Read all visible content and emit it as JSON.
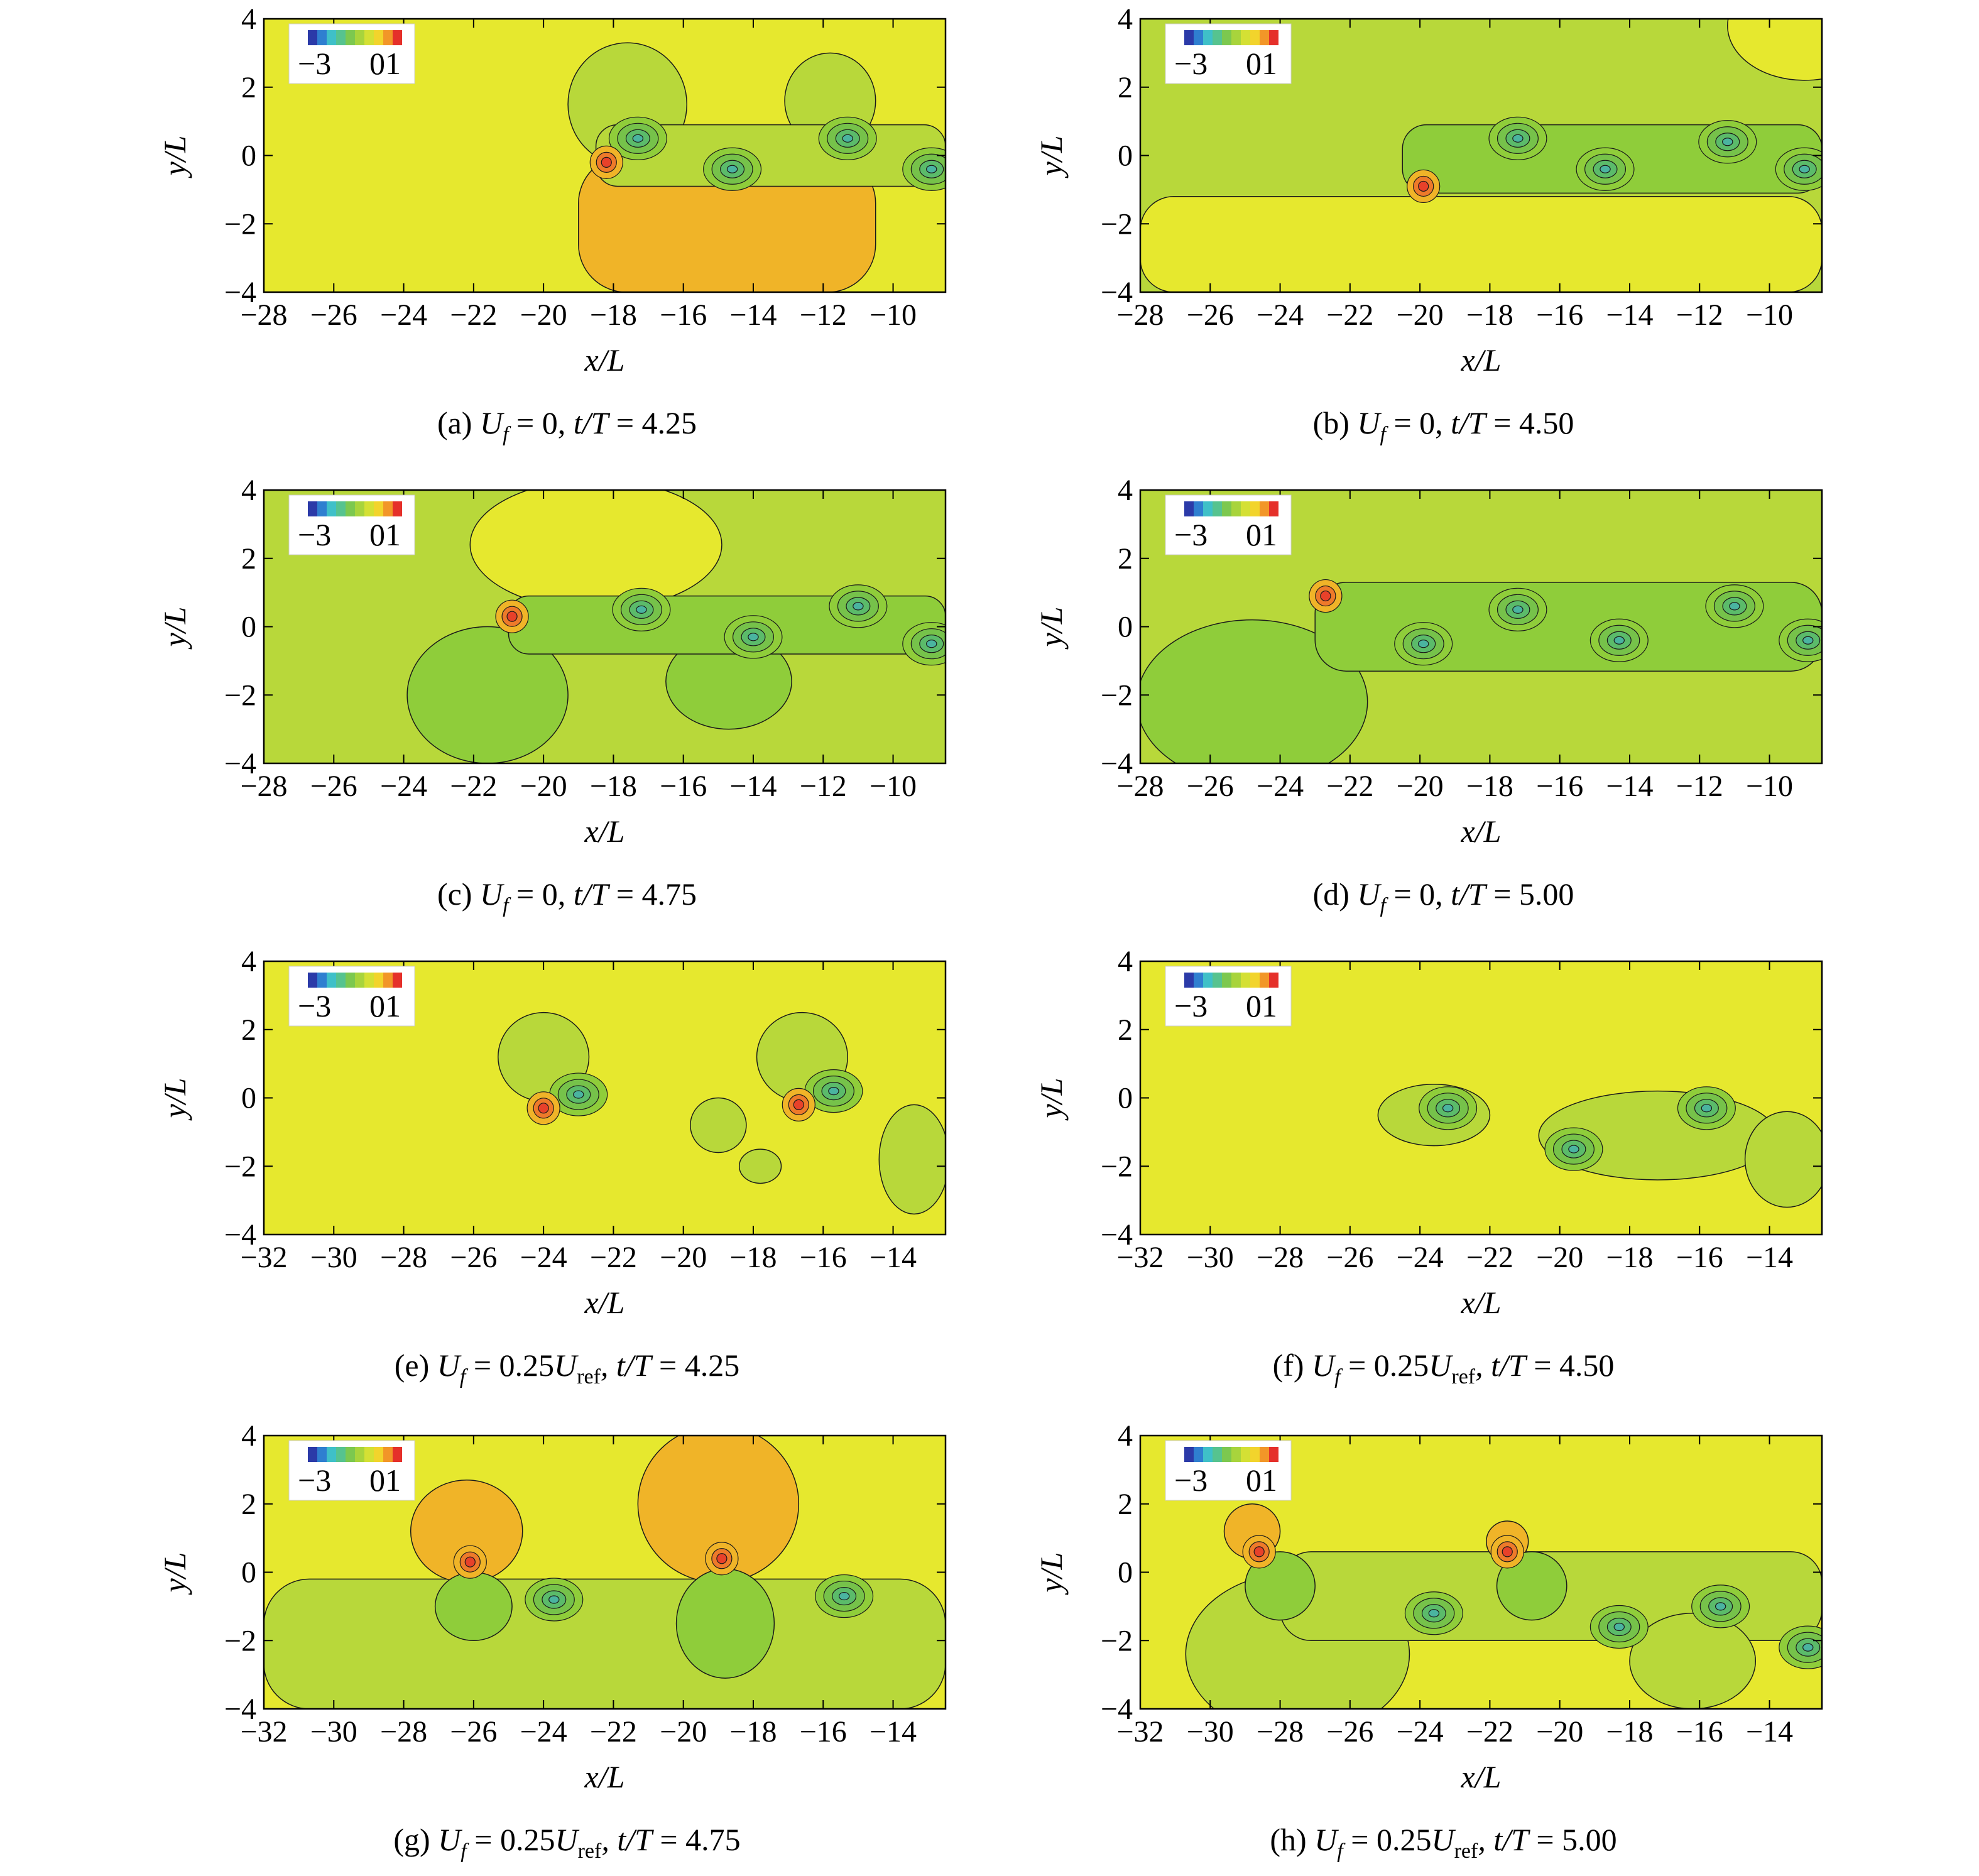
{
  "colors": {
    "field_yellow": "#e6e82e",
    "field_light_green": "#b8d83a",
    "field_green": "#8fcd3a",
    "field_mid_green": "#76c24a",
    "field_orange": "#f0b428",
    "field_red": "#e8412a",
    "contour_line": "#1a1a1a",
    "colorbar": [
      "#2b3aa8",
      "#2f7fd0",
      "#3fc0c8",
      "#56c38f",
      "#7cc84f",
      "#a8d43c",
      "#d4e034",
      "#f2d42c",
      "#f29628",
      "#e5302a"
    ]
  },
  "chart_data": [
    {
      "id": "a",
      "type": "heatmap",
      "xlabel": "x/L",
      "ylabel": "y/L",
      "xlim": [
        -28,
        -8.5
      ],
      "ylim": [
        -4,
        4
      ],
      "xticks": [
        -28,
        -26,
        -24,
        -22,
        -20,
        -18,
        -16,
        -14,
        -12,
        -10
      ],
      "yticks": [
        -4,
        -2,
        0,
        2,
        4
      ],
      "colorbar_labels": [
        "−3",
        "01"
      ],
      "caption": {
        "label": "(a) ",
        "var": "U",
        "sub": "f",
        "mid": " = 0, ",
        "time": "t/T",
        "value": " = 4.25"
      },
      "background": "field_yellow",
      "regions": [
        {
          "color": "field_orange",
          "x0": -19,
          "x1": -10.5,
          "y0": -4,
          "y1": 0
        },
        {
          "color": "field_light_green",
          "cx": -17.6,
          "cy": 1.5,
          "rx": 1.7,
          "ry": 1.8
        },
        {
          "color": "field_light_green",
          "cx": -11.8,
          "cy": 1.6,
          "rx": 1.3,
          "ry": 1.4
        },
        {
          "color": "field_light_green",
          "x0": -18.5,
          "x1": -8.5,
          "y0": -0.9,
          "y1": 0.9
        }
      ],
      "vortices": [
        [
          -17.3,
          0.5
        ],
        [
          -14.6,
          -0.4
        ],
        [
          -11.3,
          0.5
        ],
        [
          -8.9,
          -0.4
        ]
      ],
      "hotspots": [
        [
          -18.2,
          -0.2
        ]
      ]
    },
    {
      "id": "b",
      "type": "heatmap",
      "xlabel": "x/L",
      "ylabel": "y/L",
      "xlim": [
        -28,
        -8.5
      ],
      "ylim": [
        -4,
        4
      ],
      "xticks": [
        -28,
        -26,
        -24,
        -22,
        -20,
        -18,
        -16,
        -14,
        -12,
        -10
      ],
      "yticks": [
        -4,
        -2,
        0,
        2,
        4
      ],
      "colorbar_labels": [
        "−3",
        "01"
      ],
      "caption": {
        "label": "(b) ",
        "var": "U",
        "sub": "f",
        "mid": " = 0, ",
        "time": "t/T",
        "value": " = 4.50"
      },
      "background": "field_light_green",
      "regions": [
        {
          "color": "field_yellow",
          "x0": -28,
          "x1": -8.5,
          "y0": -4,
          "y1": -1.2
        },
        {
          "color": "field_yellow",
          "cx": -9.0,
          "cy": 3.8,
          "rx": 2.2,
          "ry": 1.6
        },
        {
          "color": "field_green",
          "x0": -20.5,
          "x1": -8.5,
          "y0": -1.1,
          "y1": 0.9
        }
      ],
      "vortices": [
        [
          -17.2,
          0.5
        ],
        [
          -14.7,
          -0.4
        ],
        [
          -11.2,
          0.4
        ],
        [
          -9.0,
          -0.4
        ]
      ],
      "hotspots": [
        [
          -19.9,
          -0.9
        ]
      ]
    },
    {
      "id": "c",
      "type": "heatmap",
      "xlabel": "x/L",
      "ylabel": "y/L",
      "xlim": [
        -28,
        -8.5
      ],
      "ylim": [
        -4,
        4
      ],
      "xticks": [
        -28,
        -26,
        -24,
        -22,
        -20,
        -18,
        -16,
        -14,
        -12,
        -10
      ],
      "yticks": [
        -4,
        -2,
        0,
        2,
        4
      ],
      "colorbar_labels": [
        "−3",
        "01"
      ],
      "caption": {
        "label": "(c) ",
        "var": "U",
        "sub": "f",
        "mid": " = 0, ",
        "time": "t/T",
        "value": " = 4.75"
      },
      "background": "field_light_green",
      "regions": [
        {
          "color": "field_yellow",
          "cx": -18.5,
          "cy": 2.4,
          "rx": 3.6,
          "ry": 1.9
        },
        {
          "color": "field_green",
          "cx": -21.6,
          "cy": -2.0,
          "rx": 2.3,
          "ry": 2.0
        },
        {
          "color": "field_green",
          "cx": -14.7,
          "cy": -1.6,
          "rx": 1.8,
          "ry": 1.4
        },
        {
          "color": "field_green",
          "x0": -21,
          "x1": -8.5,
          "y0": -0.8,
          "y1": 0.9
        }
      ],
      "vortices": [
        [
          -17.2,
          0.5
        ],
        [
          -14.0,
          -0.3
        ],
        [
          -11.0,
          0.6
        ],
        [
          -8.9,
          -0.5
        ]
      ],
      "hotspots": [
        [
          -20.9,
          0.3
        ]
      ]
    },
    {
      "id": "d",
      "type": "heatmap",
      "xlabel": "x/L",
      "ylabel": "y/L",
      "xlim": [
        -28,
        -8.5
      ],
      "ylim": [
        -4,
        4
      ],
      "xticks": [
        -28,
        -26,
        -24,
        -22,
        -20,
        -18,
        -16,
        -14,
        -12,
        -10
      ],
      "yticks": [
        -4,
        -2,
        0,
        2,
        4
      ],
      "colorbar_labels": [
        "−3",
        "01"
      ],
      "caption": {
        "label": "(d) ",
        "var": "U",
        "sub": "f",
        "mid": " = 0, ",
        "time": "t/T",
        "value": " = 5.00"
      },
      "background": "field_light_green",
      "regions": [
        {
          "color": "field_green",
          "cx": -24.8,
          "cy": -2.2,
          "rx": 3.3,
          "ry": 2.4
        },
        {
          "color": "field_green",
          "x0": -23,
          "x1": -8.5,
          "y0": -1.3,
          "y1": 1.3
        }
      ],
      "vortices": [
        [
          -19.9,
          -0.5
        ],
        [
          -17.2,
          0.5
        ],
        [
          -14.3,
          -0.4
        ],
        [
          -11.0,
          0.6
        ],
        [
          -8.9,
          -0.4
        ]
      ],
      "hotspots": [
        [
          -22.7,
          0.9
        ]
      ]
    },
    {
      "id": "e",
      "type": "heatmap",
      "xlabel": "x/L",
      "ylabel": "y/L",
      "xlim": [
        -32,
        -12.5
      ],
      "ylim": [
        -4,
        4
      ],
      "xticks": [
        -32,
        -30,
        -28,
        -26,
        -24,
        -22,
        -20,
        -18,
        -16,
        -14
      ],
      "yticks": [
        -4,
        -2,
        0,
        2,
        4
      ],
      "colorbar_labels": [
        "−3",
        "01"
      ],
      "caption": {
        "label": "(e) ",
        "var": "U",
        "sub": "f",
        "mid": " = 0.25",
        "ref": "U",
        "refsub": "ref",
        "time": ", t/T",
        "value": " = 4.25"
      },
      "background": "field_yellow",
      "regions": [
        {
          "color": "field_light_green",
          "cx": -24.0,
          "cy": 1.2,
          "rx": 1.3,
          "ry": 1.3
        },
        {
          "color": "field_light_green",
          "cx": -16.6,
          "cy": 1.2,
          "rx": 1.3,
          "ry": 1.3
        },
        {
          "color": "field_light_green",
          "cx": -19.0,
          "cy": -0.8,
          "rx": 0.8,
          "ry": 0.8
        },
        {
          "color": "field_light_green",
          "cx": -17.8,
          "cy": -2.0,
          "rx": 0.6,
          "ry": 0.5
        },
        {
          "color": "field_light_green",
          "cx": -13.4,
          "cy": -1.8,
          "rx": 1.0,
          "ry": 1.6
        }
      ],
      "vortices": [
        [
          -23.0,
          0.1
        ],
        [
          -15.7,
          0.2
        ]
      ],
      "hotspots": [
        [
          -24.0,
          -0.3
        ],
        [
          -16.7,
          -0.2
        ]
      ]
    },
    {
      "id": "f",
      "type": "heatmap",
      "xlabel": "x/L",
      "ylabel": "y/L",
      "xlim": [
        -32,
        -12.5
      ],
      "ylim": [
        -4,
        4
      ],
      "xticks": [
        -32,
        -30,
        -28,
        -26,
        -24,
        -22,
        -20,
        -18,
        -16,
        -14
      ],
      "yticks": [
        -4,
        -2,
        0,
        2,
        4
      ],
      "colorbar_labels": [
        "−3",
        "01"
      ],
      "caption": {
        "label": "(f) ",
        "var": "U",
        "sub": "f",
        "mid": " = 0.25",
        "ref": "U",
        "refsub": "ref",
        "time": ", t/T",
        "value": " = 4.50"
      },
      "background": "field_yellow",
      "regions": [
        {
          "color": "field_light_green",
          "cx": -23.6,
          "cy": -0.5,
          "rx": 1.6,
          "ry": 0.9
        },
        {
          "color": "field_light_green",
          "cx": -17.2,
          "cy": -1.1,
          "rx": 3.4,
          "ry": 1.3
        },
        {
          "color": "field_light_green",
          "cx": -13.5,
          "cy": -1.8,
          "rx": 1.2,
          "ry": 1.4
        }
      ],
      "vortices": [
        [
          -23.2,
          -0.3
        ],
        [
          -15.8,
          -0.3
        ],
        [
          -19.6,
          -1.5
        ]
      ],
      "hotspots": []
    },
    {
      "id": "g",
      "type": "heatmap",
      "xlabel": "x/L",
      "ylabel": "y/L",
      "xlim": [
        -32,
        -12.5
      ],
      "ylim": [
        -4,
        4
      ],
      "xticks": [
        -32,
        -30,
        -28,
        -26,
        -24,
        -22,
        -20,
        -18,
        -16,
        -14
      ],
      "yticks": [
        -4,
        -2,
        0,
        2,
        4
      ],
      "colorbar_labels": [
        "−3",
        "01"
      ],
      "caption": {
        "label": "(g) ",
        "var": "U",
        "sub": "f",
        "mid": " = 0.25",
        "ref": "U",
        "refsub": "ref",
        "time": ", t/T",
        "value": " = 4.75"
      },
      "background": "field_yellow",
      "regions": [
        {
          "color": "field_light_green",
          "x0": -32,
          "x1": -12.5,
          "y0": -4,
          "y1": -0.2
        },
        {
          "color": "field_orange",
          "cx": -26.2,
          "cy": 1.2,
          "rx": 1.6,
          "ry": 1.5
        },
        {
          "color": "field_orange",
          "cx": -19.0,
          "cy": 2.0,
          "rx": 2.3,
          "ry": 2.3
        },
        {
          "color": "field_green",
          "cx": -26.0,
          "cy": -1.0,
          "rx": 1.1,
          "ry": 1.0
        },
        {
          "color": "field_green",
          "cx": -18.8,
          "cy": -1.5,
          "rx": 1.4,
          "ry": 1.6
        }
      ],
      "vortices": [
        [
          -23.7,
          -0.8
        ],
        [
          -15.4,
          -0.7
        ]
      ],
      "hotspots": [
        [
          -26.1,
          0.3
        ],
        [
          -18.9,
          0.4
        ]
      ]
    },
    {
      "id": "h",
      "type": "heatmap",
      "xlabel": "x/L",
      "ylabel": "y/L",
      "xlim": [
        -32,
        -12.5
      ],
      "ylim": [
        -4,
        4
      ],
      "xticks": [
        -32,
        -30,
        -28,
        -26,
        -24,
        -22,
        -20,
        -18,
        -16,
        -14
      ],
      "yticks": [
        -4,
        -2,
        0,
        2,
        4
      ],
      "colorbar_labels": [
        "−3",
        "01"
      ],
      "caption": {
        "label": "(h) ",
        "var": "U",
        "sub": "f",
        "mid": " = 0.25",
        "ref": "U",
        "refsub": "ref",
        "time": ", t/T",
        "value": " = 5.00"
      },
      "background": "field_yellow",
      "regions": [
        {
          "color": "field_light_green",
          "cx": -27.5,
          "cy": -2.4,
          "rx": 3.2,
          "ry": 2.4
        },
        {
          "color": "field_light_green",
          "x0": -28,
          "x1": -12.5,
          "y0": -2.0,
          "y1": 0.6
        },
        {
          "color": "field_light_green",
          "cx": -16.2,
          "cy": -2.6,
          "rx": 1.8,
          "ry": 1.4
        },
        {
          "color": "field_orange",
          "cx": -28.8,
          "cy": 1.2,
          "rx": 0.8,
          "ry": 0.8
        },
        {
          "color": "field_orange",
          "cx": -21.5,
          "cy": 0.9,
          "rx": 0.6,
          "ry": 0.6
        },
        {
          "color": "field_green",
          "cx": -28.0,
          "cy": -0.4,
          "rx": 1.0,
          "ry": 1.0
        },
        {
          "color": "field_green",
          "cx": -20.8,
          "cy": -0.4,
          "rx": 1.0,
          "ry": 1.0
        }
      ],
      "vortices": [
        [
          -23.6,
          -1.2
        ],
        [
          -18.3,
          -1.6
        ],
        [
          -15.4,
          -1.0
        ],
        [
          -12.9,
          -2.2
        ]
      ],
      "hotspots": [
        [
          -28.6,
          0.6
        ],
        [
          -21.5,
          0.6
        ]
      ]
    }
  ]
}
